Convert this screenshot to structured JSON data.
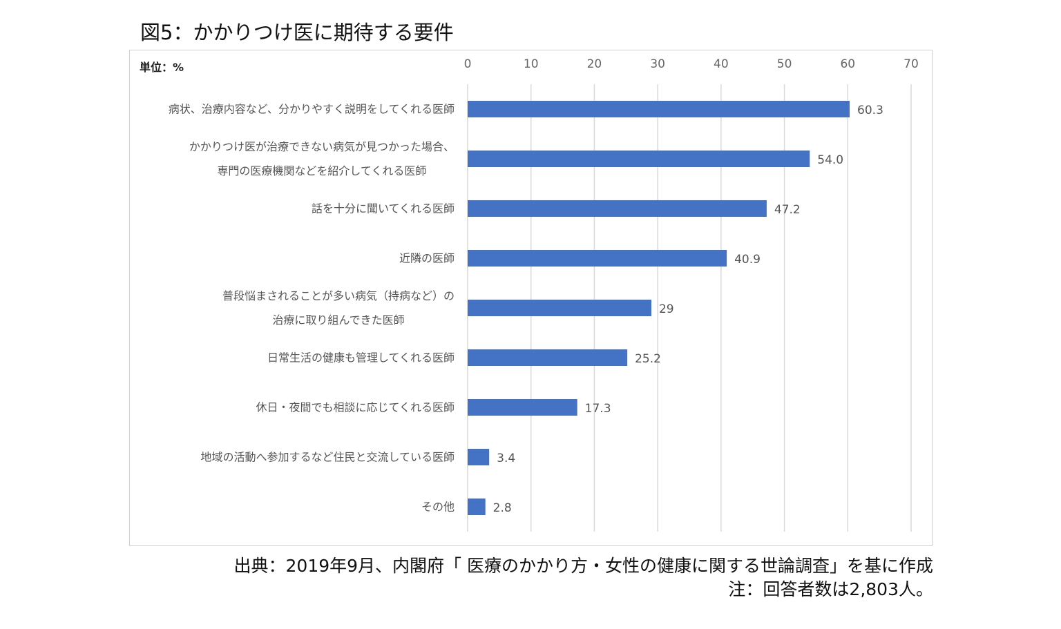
{
  "chart_data": {
    "type": "bar",
    "orientation": "horizontal",
    "title": "図5：かかりつけ医に期待する要件",
    "unit_label": "単位：%",
    "categories": [
      "病状、治療内容など、分かりやすく説明をしてくれる医師",
      "かかりつけ医が治療できない病気が見つかった場合、\n専門の医療機関などを紹介してくれる医師",
      "話を十分に聞いてくれる医師",
      "近隣の医師",
      "普段悩まされることが多い病気（持病など）の\n治療に取り組んできた医師",
      "日常生活の健康も管理してくれる医師",
      "休日・夜間でも相談に応じてくれる医師",
      "地域の活動へ参加するなど住民と交流している医師",
      "その他"
    ],
    "values": [
      60.3,
      54.0,
      47.2,
      40.9,
      29,
      25.2,
      17.3,
      3.4,
      2.8
    ],
    "data_labels": [
      "60.3",
      "54.0",
      "47.2",
      "40.9",
      "29",
      "25.2",
      "17.3",
      "3.4",
      "2.8"
    ],
    "xlim": [
      0,
      70
    ],
    "xticks": [
      "0",
      "10",
      "20",
      "30",
      "40",
      "50",
      "60",
      "70"
    ],
    "axis_position": "top",
    "grid": true,
    "bar_color": "#4472C4"
  },
  "source": {
    "line1": "出典：2019年9月、内閣府「 医療のかかり方・女性の健康に関する世論調査」を基に作成",
    "line2": "注：回答者数は2,803人。"
  }
}
